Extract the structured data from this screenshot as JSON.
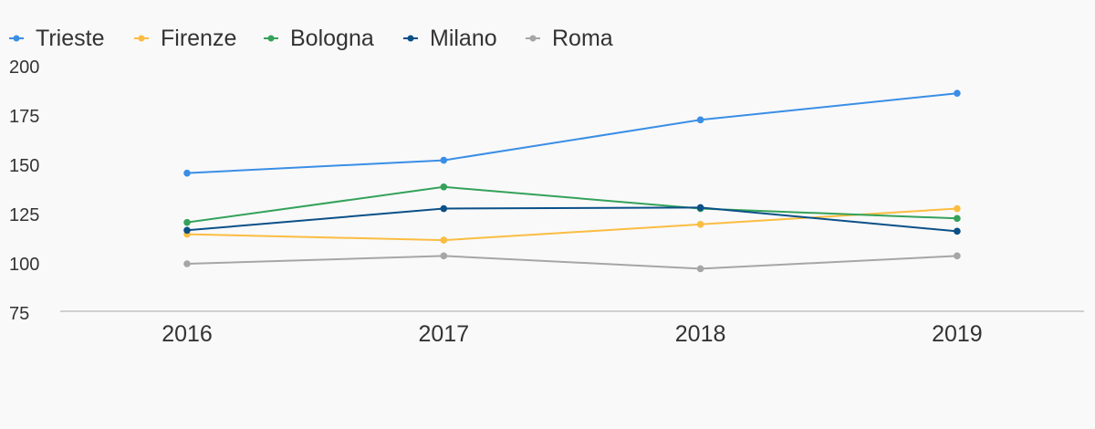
{
  "chart_data": {
    "type": "line",
    "categories": [
      "2016",
      "2017",
      "2018",
      "2019"
    ],
    "series": [
      {
        "name": "Trieste",
        "color": "#3a8ee6",
        "values": [
          146,
          152.5,
          173,
          186.5
        ]
      },
      {
        "name": "Firenze",
        "color": "#fbbd41",
        "values": [
          115,
          112,
          120,
          128
        ]
      },
      {
        "name": "Bologna",
        "color": "#34a25a",
        "values": [
          121,
          139,
          128,
          123
        ]
      },
      {
        "name": "Milano",
        "color": "#0b5088",
        "values": [
          117,
          128,
          128.5,
          116.5
        ]
      },
      {
        "name": "Roma",
        "color": "#a6a6a6",
        "values": [
          100,
          104,
          97.5,
          104
        ]
      }
    ],
    "yticks": [
      "200",
      "175",
      "150",
      "125",
      "100",
      "75"
    ],
    "ylim": [
      75,
      200
    ],
    "title": "",
    "xlabel": "",
    "ylabel": "",
    "grid": false,
    "legend_position": "top-left",
    "axis_color": "#d0d0d0"
  }
}
